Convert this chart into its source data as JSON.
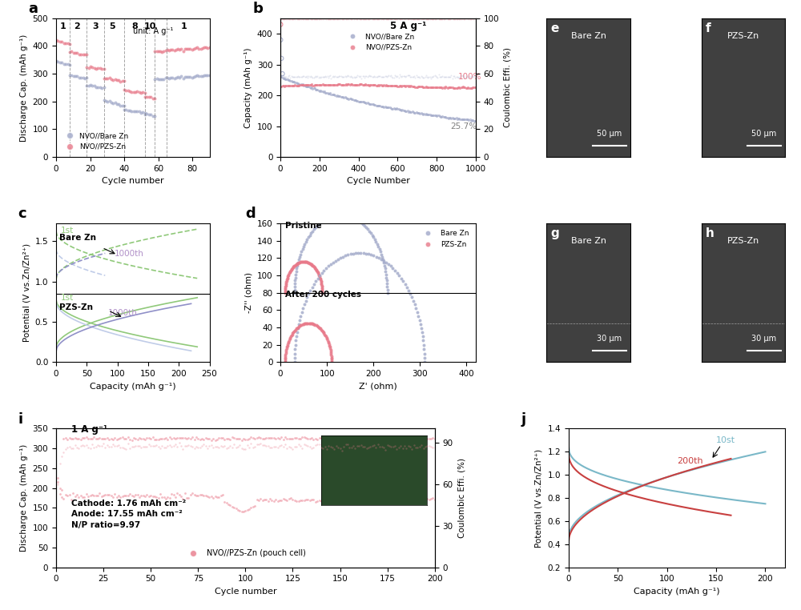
{
  "panel_a": {
    "title": "a",
    "xlabel": "Cycle number",
    "ylabel": "Discharge Cap. (mAh g⁻¹)",
    "ylim": [
      0,
      500
    ],
    "xlim": [
      0,
      90
    ],
    "rate_labels": [
      "1",
      "2",
      "3",
      "5",
      "8",
      "10",
      "1"
    ],
    "rate_x": [
      4,
      12,
      23,
      33,
      46,
      55,
      75
    ],
    "vline_x": [
      8,
      18,
      28,
      40,
      52,
      58,
      65
    ],
    "unit_text": "unit: A g⁻¹",
    "bare_color": "#a0a8c8",
    "pzs_color": "#e87a8a",
    "legend": [
      "NVO//Bare Zn",
      "NVO//PZS-Zn"
    ]
  },
  "panel_b": {
    "title": "b",
    "xlabel": "Cycle Number",
    "ylabel": "Capacity (mAh g⁻¹)",
    "ylabel2": "Coulombic Effi. (%)",
    "ylim": [
      0,
      450
    ],
    "xlim": [
      0,
      1000
    ],
    "ylim2": [
      0,
      100
    ],
    "label_100": "100%",
    "label_257": "25.7%",
    "rate_text": "5 A g⁻¹",
    "bare_color": "#a0a8c8",
    "pzs_color": "#e87a8a",
    "legend": [
      "NVO//Bare Zn",
      "NVO//PZS-Zn"
    ]
  },
  "panel_c": {
    "title": "c",
    "xlabel": "Capacity (mAh g⁻¹)",
    "ylabel": "Potential (V vs.Zn/Zn²⁺)",
    "xlim": [
      0,
      250
    ],
    "bare_label": "Bare Zn",
    "pzs_label": "PZS-Zn",
    "label_1st": "1st",
    "label_1000th": "1000th",
    "green": "#90c97a",
    "purple_light": "#c0cce8",
    "purple": "#9090c8"
  },
  "panel_d": {
    "title": "d",
    "xlabel": "Z' (ohm)",
    "ylabel": "-Z'' (ohm)",
    "xlim": [
      0,
      420
    ],
    "ylim": [
      0,
      160
    ],
    "pristine_label": "Pristine",
    "after_label": "After 200 cycles",
    "bare_color": "#a0a8c8",
    "pzs_color": "#e87a8a"
  },
  "panel_i": {
    "title": "i",
    "xlabel": "Cycle number",
    "ylabel": "Discharge Cap. (mAh g⁻¹)",
    "ylabel2": "Coulombic Effi. (%)",
    "ylim": [
      0,
      350
    ],
    "xlim": [
      0,
      200
    ],
    "ylim2": [
      0,
      100
    ],
    "rate_text": "1 A g⁻¹",
    "cathode_text": "Cathode: 1.76 mAh cm⁻²",
    "anode_text": "Anode: 17.55 mAh cm⁻²",
    "np_text": "N/P ratio=9.97",
    "legend": "NVO//PZS-Zn",
    "legend2": "pouch cell",
    "pzs_color": "#e87a8a"
  },
  "panel_j": {
    "title": "j",
    "xlabel": "Capacity (mAh g⁻¹)",
    "ylabel": "Potential (V vs.Zn/Zn²⁺)",
    "xlim": [
      0,
      220
    ],
    "ylim": [
      0.2,
      1.4
    ],
    "label_10st": "10st",
    "label_200th": "200th",
    "color_10st": "#7ab8c8",
    "color_200th": "#c84040"
  },
  "colors": {
    "bare": "#a0a8c8",
    "pzs": "#e87a8a",
    "green": "#90c97a",
    "purple_light": "#c0cce8",
    "purple": "#9090c8"
  }
}
